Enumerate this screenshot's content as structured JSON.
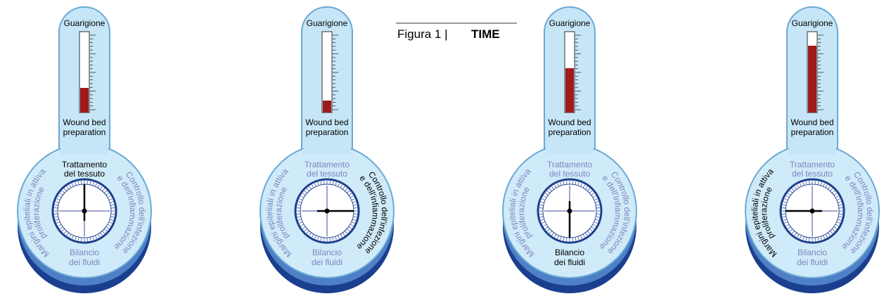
{
  "figure": {
    "label": "Figura 1 |",
    "title": "TIME"
  },
  "gauges": [
    {
      "top_label": "Guarigione",
      "bottom_label": [
        "Wound bed",
        "preparation"
      ],
      "highlight": "top",
      "dial": {
        "top": [
          "Trattamento",
          "del tessuto"
        ],
        "right": [
          "Controllo dell'infezione",
          "e dell'infiammazione"
        ],
        "bottom": [
          "Bilancio",
          "dei fluidi"
        ],
        "left": [
          "Margini epiteliali in attiva",
          "proliferazione"
        ]
      }
    },
    {
      "top_label": "Guarigione",
      "bottom_label": [
        "Wound bed",
        "preparation"
      ],
      "highlight": "right",
      "dial": {
        "top": [
          "Trattamento",
          "del tessuto"
        ],
        "right": [
          "Controllo dell'infezione",
          "e dell'infiammazione"
        ],
        "bottom": [
          "Bilancio",
          "dei fluidi"
        ],
        "left": [
          "Margini epiteliali in attiva",
          "proliferazione"
        ]
      }
    },
    {
      "top_label": "Guarigione",
      "bottom_label": [
        "Wound bed",
        "preparation"
      ],
      "highlight": "bottom",
      "dial": {
        "top": [
          "Trattamento",
          "del tessuto"
        ],
        "right": [
          "Controllo dell'infezione",
          "e dell'infiammazione"
        ],
        "bottom": [
          "Bilancio",
          "dei fluidi"
        ],
        "left": [
          "Margini epiteliali in attiva",
          "proliferazione"
        ]
      }
    },
    {
      "top_label": "Guarigione",
      "bottom_label": [
        "Wound bed",
        "preparation"
      ],
      "highlight": "left",
      "dial": {
        "top": [
          "Trattamento",
          "del tessuto"
        ],
        "right": [
          "Controllo dell'infezione",
          "e dell'infiammazione"
        ],
        "bottom": [
          "Bilancio",
          "dei fluidi"
        ],
        "left": [
          "Margini epiteliali in attiva",
          "proliferazione"
        ]
      }
    }
  ]
}
